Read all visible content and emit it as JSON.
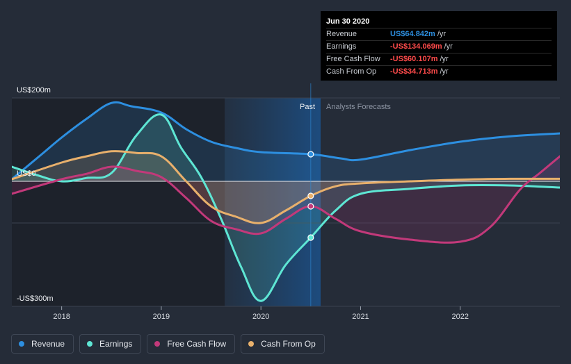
{
  "chart_data": {
    "type": "line",
    "title": "",
    "xlabel": "",
    "ylabel": "",
    "y_tick_labels": {
      "top": "US$200m",
      "zero": "US$0",
      "bottom": "-US$300m"
    },
    "ylim": [
      -300,
      200
    ],
    "xlim": [
      2017.5,
      2023.0
    ],
    "x_ticks": [
      2018,
      2019,
      2020,
      2021,
      2022
    ],
    "x_tick_labels": [
      "2018",
      "2019",
      "2020",
      "2021",
      "2022"
    ],
    "region_labels": {
      "past": "Past",
      "forecast": "Analysts Forecasts"
    },
    "divider_x": 2020.5,
    "grid": true,
    "legend_placement": "bottom-left",
    "series": [
      {
        "name": "Revenue",
        "color": "#2d8fe0",
        "x": [
          2017.5,
          2017.8,
          2018.0,
          2018.25,
          2018.5,
          2018.7,
          2019.0,
          2019.25,
          2019.5,
          2019.75,
          2020.0,
          2020.5,
          2020.8,
          2021.0,
          2021.5,
          2022.0,
          2022.5,
          2023.0
        ],
        "values": [
          5,
          65,
          105,
          150,
          188,
          180,
          165,
          125,
          95,
          80,
          70,
          65,
          55,
          52,
          75,
          95,
          108,
          115
        ]
      },
      {
        "name": "Earnings",
        "color": "#5ee6d4",
        "x": [
          2017.5,
          2017.75,
          2018.0,
          2018.25,
          2018.5,
          2018.75,
          2019.0,
          2019.2,
          2019.4,
          2019.6,
          2019.8,
          2020.0,
          2020.25,
          2020.5,
          2020.75,
          2021.0,
          2021.5,
          2022.0,
          2022.5,
          2023.0
        ],
        "values": [
          35,
          15,
          0,
          8,
          20,
          110,
          160,
          80,
          10,
          -90,
          -205,
          -287,
          -200,
          -135,
          -70,
          -30,
          -18,
          -10,
          -10,
          -15
        ]
      },
      {
        "name": "Free Cash Flow",
        "color": "#c2397a",
        "x": [
          2017.5,
          2018.0,
          2018.25,
          2018.5,
          2018.75,
          2019.0,
          2019.25,
          2019.5,
          2019.75,
          2020.0,
          2020.25,
          2020.5,
          2020.75,
          2021.0,
          2021.5,
          2022.0,
          2022.3,
          2022.6,
          2022.8,
          2023.0
        ],
        "values": [
          -30,
          5,
          18,
          35,
          25,
          10,
          -40,
          -95,
          -115,
          -125,
          -90,
          -60,
          -90,
          -120,
          -140,
          -145,
          -110,
          -20,
          20,
          60
        ]
      },
      {
        "name": "Cash From Op",
        "color": "#e8b06c",
        "x": [
          2017.5,
          2018.0,
          2018.25,
          2018.5,
          2018.75,
          2019.0,
          2019.25,
          2019.5,
          2019.75,
          2020.0,
          2020.25,
          2020.5,
          2020.75,
          2021.0,
          2021.5,
          2022.0,
          2022.5,
          2023.0
        ],
        "values": [
          5,
          45,
          60,
          72,
          68,
          60,
          0,
          -60,
          -85,
          -100,
          -70,
          -35,
          -12,
          -5,
          0,
          4,
          6,
          6
        ]
      }
    ],
    "markers": [
      {
        "series": "Revenue",
        "x": 2020.5,
        "y": 65
      },
      {
        "series": "Earnings",
        "x": 2020.5,
        "y": -135
      },
      {
        "series": "Free Cash Flow",
        "x": 2020.5,
        "y": -60
      },
      {
        "series": "Cash From Op",
        "x": 2020.5,
        "y": -35
      }
    ]
  },
  "tooltip": {
    "date": "Jun 30 2020",
    "rows": [
      {
        "name": "Revenue",
        "value": "US$64.842m",
        "unit": "/yr",
        "color": "#2d8fe0"
      },
      {
        "name": "Earnings",
        "value": "-US$134.069m",
        "unit": "/yr",
        "color": "#ff4b4b"
      },
      {
        "name": "Free Cash Flow",
        "value": "-US$60.107m",
        "unit": "/yr",
        "color": "#ff4b4b"
      },
      {
        "name": "Cash From Op",
        "value": "-US$34.713m",
        "unit": "/yr",
        "color": "#ff4b4b"
      }
    ]
  },
  "legend": [
    {
      "label": "Revenue",
      "color": "#2d8fe0"
    },
    {
      "label": "Earnings",
      "color": "#5ee6d4"
    },
    {
      "label": "Free Cash Flow",
      "color": "#c2397a"
    },
    {
      "label": "Cash From Op",
      "color": "#e8b06c"
    }
  ]
}
